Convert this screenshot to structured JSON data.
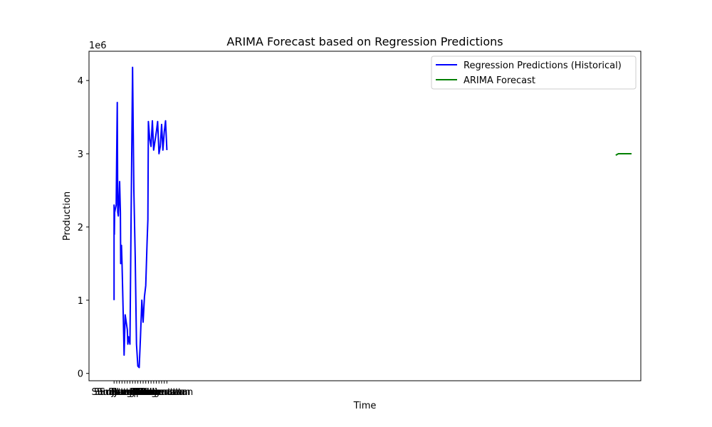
{
  "chart_data": {
    "type": "line",
    "title": "ARIMA Forecast based on Regression Predictions",
    "xlabel": "Time",
    "ylabel": "Production",
    "y_offset_text": "1e6",
    "ylim": [
      -0.1,
      4.4
    ],
    "y_ticks": [
      0,
      1,
      2,
      3,
      4
    ],
    "y_tick_labels": [
      "0",
      "1",
      "2",
      "3",
      "4"
    ],
    "xlim": [
      -0.95,
      19.95
    ],
    "x_ticks": [
      0,
      0.1,
      0.2,
      0.3,
      0.4,
      0.5,
      0.6,
      0.7,
      0.8,
      0.9,
      1.0,
      1.1,
      1.2,
      1.3,
      1.4,
      1.5,
      1.6,
      1.7,
      1.8,
      1.9,
      2.0
    ],
    "x_tick_labels": [
      "Sumatera",
      "Sumatera",
      "Sumatera",
      "Sumatera",
      "Jambi",
      "Jambi",
      "Bengkulu",
      "Bengkulu",
      "Lampung",
      "Lampung",
      "Riau",
      "Riau",
      "Bali",
      "Bali",
      "Banten",
      "Banten",
      "Kalimantan",
      "Kalimantan",
      "Kalimantan",
      "Kalimantan",
      "Kalimantan"
    ],
    "series": [
      {
        "name": "Regression Predictions (Historical)",
        "color": "#0000ff",
        "x": [
          0,
          0,
          0.01,
          0.02,
          0.08,
          0.1,
          0.12,
          0.14,
          0.16,
          0.2,
          0.21,
          0.24,
          0.25,
          0.28,
          0.3,
          0.35,
          0.38,
          0.42,
          0.5,
          0.52,
          0.55,
          0.6,
          0.64,
          0.7,
          0.75,
          0.8,
          0.85,
          0.9,
          0.95,
          1.0,
          1.05,
          1.1,
          1.15,
          1.2,
          1.25,
          1.28,
          1.3,
          1.35,
          1.4,
          1.45,
          1.5,
          1.6,
          1.65,
          1.7,
          1.75,
          1.8,
          1.85,
          1.9,
          1.95,
          2.0
        ],
        "y": [
          1.0,
          2.3,
          1.9,
          2.2,
          2.3,
          3.0,
          3.7,
          2.2,
          2.15,
          2.5,
          2.62,
          2.2,
          1.5,
          1.75,
          1.5,
          0.75,
          0.25,
          0.8,
          0.6,
          0.4,
          0.5,
          0.4,
          2.0,
          4.18,
          2.5,
          1.6,
          0.4,
          0.1,
          0.08,
          0.5,
          1.0,
          0.7,
          1.05,
          1.2,
          1.8,
          2.1,
          3.44,
          3.2,
          3.1,
          3.45,
          3.05,
          3.3,
          3.44,
          3.0,
          3.1,
          3.4,
          3.05,
          3.3,
          3.45,
          3.05
        ]
      },
      {
        "name": "ARIMA Forecast",
        "color": "#008000",
        "x": [
          19.0,
          19.05,
          19.1,
          19.2,
          19.3,
          19.4,
          19.5,
          19.6
        ],
        "y": [
          2.98,
          2.99,
          3.0,
          3.0,
          3.0,
          3.0,
          3.0,
          3.0
        ]
      }
    ],
    "legend": {
      "position": "top-right"
    },
    "grid": false
  }
}
